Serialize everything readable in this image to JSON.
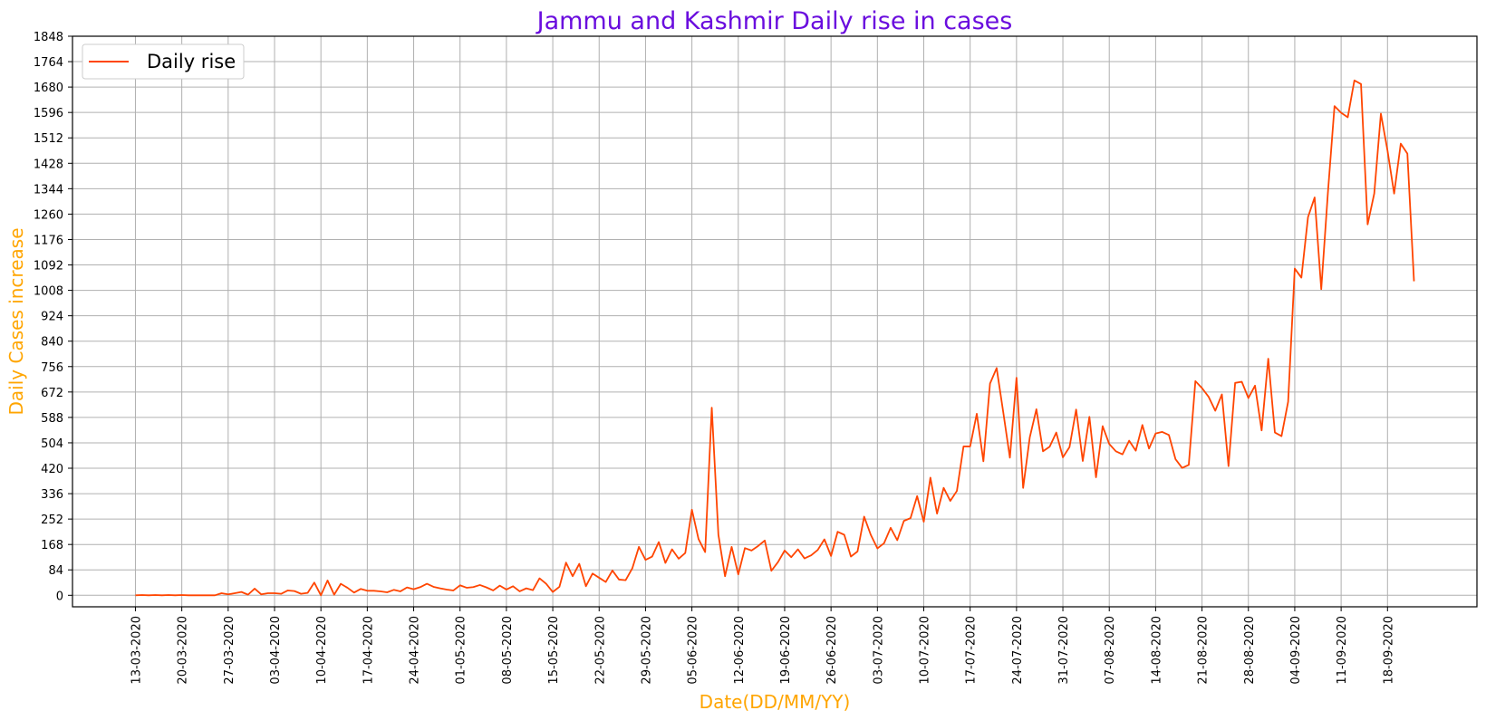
{
  "chart_data": {
    "type": "line",
    "title": "Jammu and Kashmir Daily rise in cases",
    "xlabel": "Date(DD/MM/YY)",
    "ylabel": "Daily Cases increase",
    "ylim": [
      -38,
      1848
    ],
    "yticks": [
      0,
      84,
      168,
      252,
      336,
      420,
      504,
      588,
      672,
      756,
      840,
      924,
      1008,
      1092,
      1176,
      1260,
      1344,
      1428,
      1512,
      1596,
      1680,
      1764,
      1848
    ],
    "xticks": [
      "13-03-2020",
      "20-03-2020",
      "27-03-2020",
      "03-04-2020",
      "10-04-2020",
      "17-04-2020",
      "24-04-2020",
      "01-05-2020",
      "08-05-2020",
      "15-05-2020",
      "22-05-2020",
      "29-05-2020",
      "05-06-2020",
      "12-06-2020",
      "19-06-2020",
      "26-06-2020",
      "03-07-2020",
      "10-07-2020",
      "17-07-2020",
      "24-07-2020",
      "31-07-2020",
      "07-08-2020",
      "14-08-2020",
      "21-08-2020",
      "28-08-2020",
      "04-09-2020",
      "11-09-2020",
      "18-09-2020"
    ],
    "grid": true,
    "legend": "upper-left",
    "colors": {
      "title": "#6a0dde",
      "axis_labels": "#ffa500",
      "line": "#ff4500"
    },
    "series": [
      {
        "name": "Daily rise",
        "start_date": "13-03-2020",
        "values": [
          0,
          1,
          0,
          1,
          0,
          1,
          0,
          1,
          0,
          0,
          0,
          0,
          0,
          7,
          3,
          7,
          11,
          2,
          22,
          3,
          7,
          7,
          5,
          16,
          14,
          5,
          8,
          42,
          0,
          49,
          2,
          38,
          25,
          9,
          21,
          15,
          15,
          13,
          10,
          18,
          13,
          26,
          20,
          27,
          38,
          28,
          23,
          19,
          16,
          33,
          25,
          27,
          34,
          26,
          16,
          32,
          19,
          30,
          13,
          23,
          17,
          56,
          38,
          11,
          28,
          108,
          63,
          104,
          30,
          72,
          58,
          44,
          82,
          52,
          50,
          89,
          160,
          117,
          128,
          176,
          107,
          152,
          121,
          140,
          283,
          186,
          143,
          620,
          200,
          63,
          160,
          69,
          156,
          148,
          163,
          181,
          81,
          110,
          148,
          126,
          152,
          122,
          132,
          150,
          185,
          130,
          210,
          200,
          128,
          145,
          260,
          200,
          155,
          172,
          223,
          182,
          246,
          255,
          328,
          243,
          389,
          270,
          355,
          312,
          345,
          492,
          492,
          600,
          443,
          700,
          751,
          605,
          455,
          719,
          355,
          522,
          615,
          476,
          491,
          538,
          456,
          490,
          614,
          444,
          590,
          390,
          559,
          500,
          476,
          466,
          511,
          478,
          563,
          485,
          535,
          540,
          530,
          450,
          421,
          431,
          708,
          685,
          656,
          610,
          664,
          427,
          702,
          706,
          652,
          693,
          545,
          782,
          538,
          526,
          640,
          1080,
          1050,
          1250,
          1315,
          1012,
          1330,
          1617,
          1595,
          1580,
          1702,
          1690,
          1226,
          1328,
          1592,
          1470,
          1328,
          1493,
          1460,
          1038
        ]
      }
    ]
  }
}
